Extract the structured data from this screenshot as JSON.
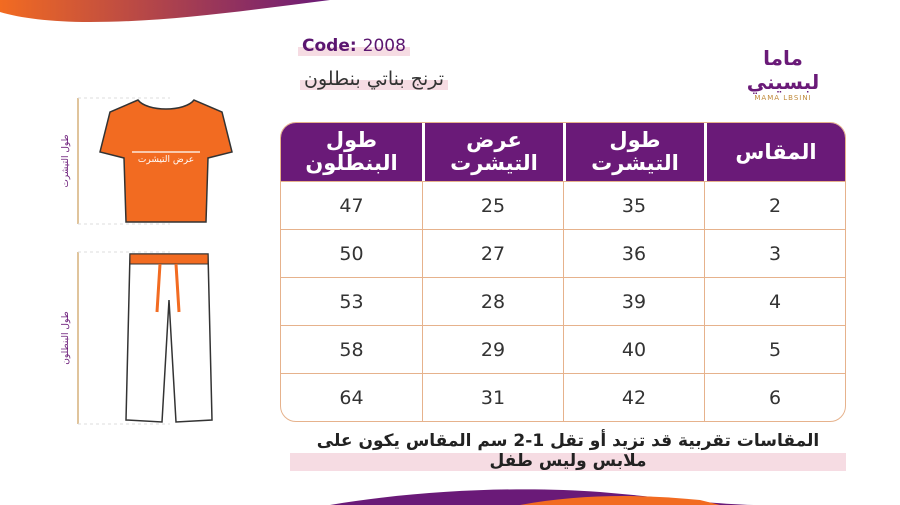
{
  "header": {
    "code_label": "Code:",
    "code": "2008",
    "title": "ترنج بناتي بنطلون"
  },
  "logo": {
    "name": "ماما لبسيني",
    "latin": "MAMA LBSINI"
  },
  "diagram": {
    "tshirt_width": "عرض التيشرت",
    "tshirt_length": "طول التيشرت",
    "pants_length": "طول البنطلون"
  },
  "table": {
    "columns": [
      "المقاس",
      "طول التيشرت",
      "عرض التيشرت",
      "طول البنطلون"
    ],
    "rows": [
      [
        2,
        35,
        25,
        47
      ],
      [
        3,
        36,
        27,
        50
      ],
      [
        4,
        39,
        28,
        53
      ],
      [
        5,
        40,
        29,
        58
      ],
      [
        6,
        42,
        31,
        64
      ]
    ]
  },
  "note": "المقاسات تقربية قد تزيد أو تقل 1-2 سم المقاس يكون على ملابس وليس طفل"
}
